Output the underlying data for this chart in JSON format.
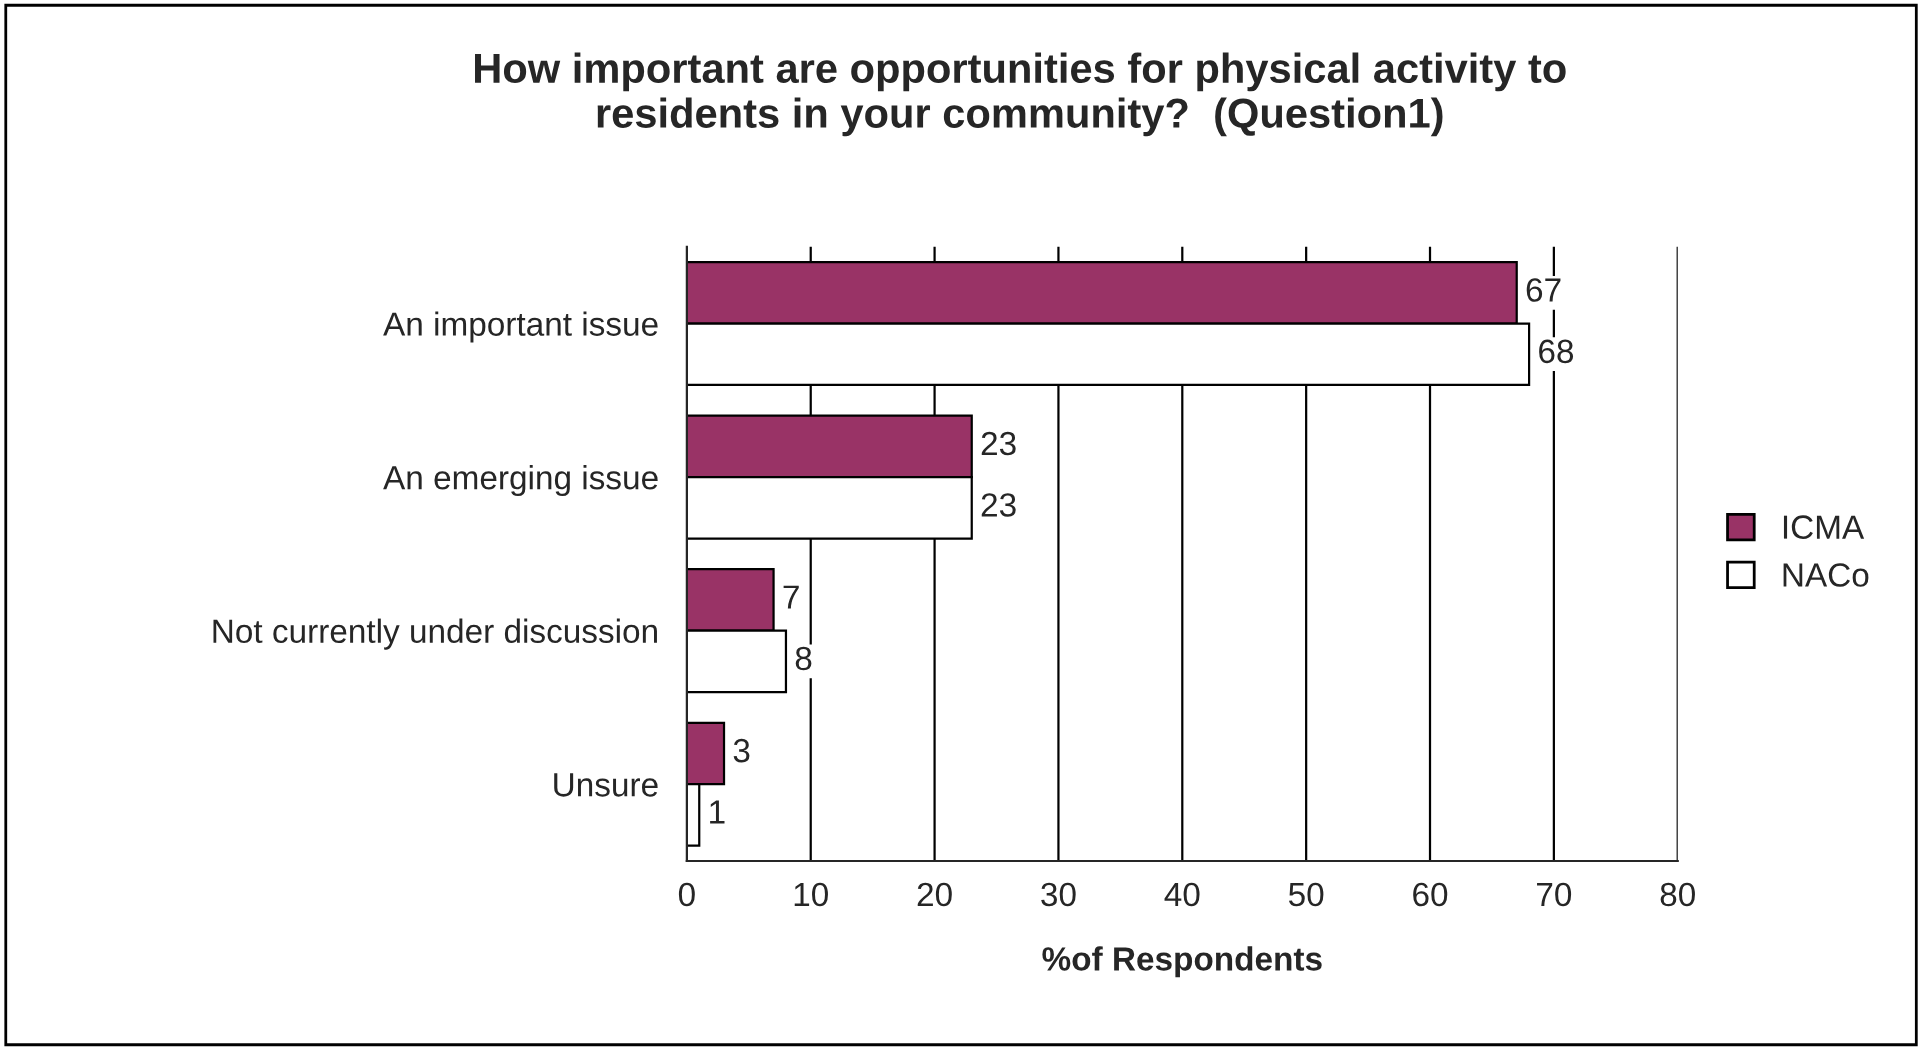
{
  "chart_data": {
    "type": "bar",
    "orientation": "horizontal",
    "title": "How important are opportunities for physical activity to\nresidents in your community?  (Question1)",
    "xlabel": "%of Respondents",
    "categories": [
      "An important issue",
      "An emerging issue",
      "Not currently under discussion",
      "Unsure"
    ],
    "series": [
      {
        "name": "ICMA",
        "color": "#993366",
        "values": [
          67,
          23,
          7,
          3
        ]
      },
      {
        "name": "NACo",
        "color": "#ffffff",
        "values": [
          68,
          23,
          8,
          1
        ]
      }
    ],
    "xlim": [
      0,
      80
    ],
    "xticks": [
      0,
      10,
      20,
      30,
      40,
      50,
      60,
      70,
      80
    ],
    "grid": "x",
    "legend": "right",
    "data_labels": true
  }
}
